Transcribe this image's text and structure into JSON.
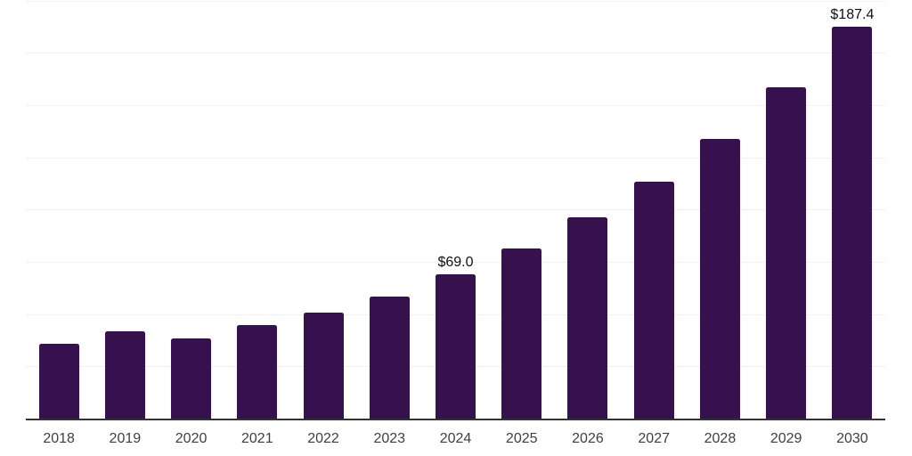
{
  "chart_data": {
    "type": "bar",
    "title": "",
    "xlabel": "",
    "ylabel": "",
    "categories": [
      "2018",
      "2019",
      "2020",
      "2021",
      "2022",
      "2023",
      "2024",
      "2025",
      "2026",
      "2027",
      "2028",
      "2029",
      "2030"
    ],
    "values": [
      35.6,
      41.6,
      38.2,
      44.6,
      50.8,
      58.4,
      69.0,
      81.4,
      96.1,
      113.3,
      133.7,
      158.4,
      187.4
    ],
    "data_labels": [
      {
        "category": "2024",
        "text": "$69.0"
      },
      {
        "category": "2030",
        "text": "$187.4"
      }
    ],
    "ylim": [
      0,
      200
    ],
    "gridline_step": 25,
    "grid": true,
    "legend": "none",
    "y_axis_labels_visible": false
  },
  "style": {
    "background": "#FFFFFF",
    "bar_color": "#37114D",
    "gridline_color": "#F0F0F0",
    "axis_line_color": "#333333",
    "tick_label_color": "#3F3F3F",
    "data_label_color": "#101010"
  }
}
